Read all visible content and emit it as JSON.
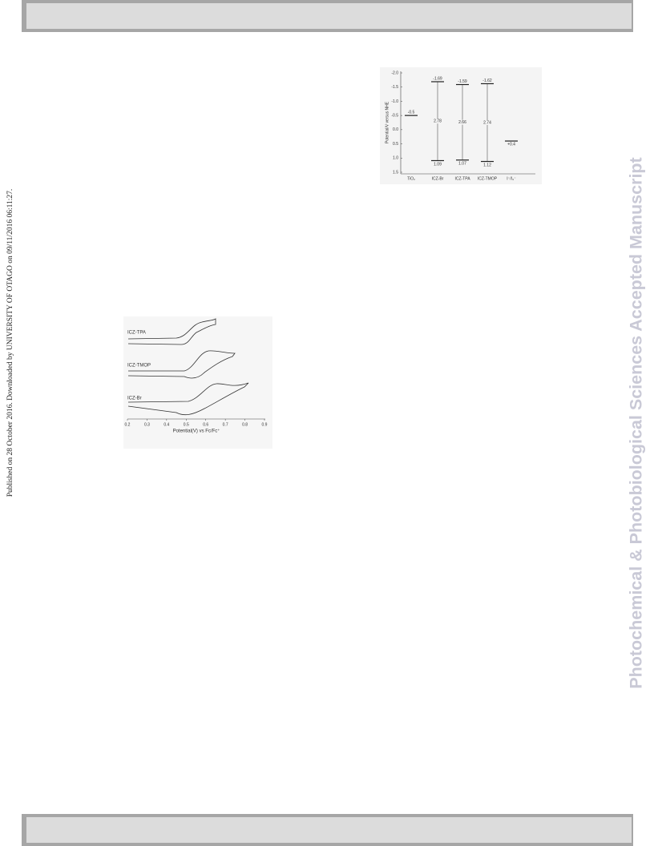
{
  "side_note": "Published on 28 October 2016. Downloaded by UNIVERSITY OF OTAGO on 09/11/2016 06:11:27.",
  "watermark": "Photochemical & Photobiological Sciences Accepted Manuscript",
  "figure_energy": {
    "y_axis_label": "Potential/V versus NHE",
    "yticks": [
      "-2.0",
      "-1.5",
      "-1.0",
      "-0.5",
      "0.0",
      "0.5",
      "1.0",
      "1.5"
    ],
    "columns": [
      {
        "name": "TiO₂",
        "level": "-0.5"
      },
      {
        "name": "ICZ-Br",
        "lumo": "-1.69",
        "gap": "2.78",
        "homo": "1.09"
      },
      {
        "name": "ICZ-TPA",
        "lumo": "-1.59",
        "gap": "2.66",
        "homo": "1.07"
      },
      {
        "name": "ICZ-TMOP",
        "lumo": "-1.62",
        "gap": "2.74",
        "homo": "1.12"
      },
      {
        "name": "I⁻/I₃⁻",
        "level": "+0.4"
      }
    ]
  },
  "figure_cv": {
    "curve_labels": [
      "ICZ-TPA",
      "ICZ-TMOP",
      "ICZ-Br"
    ],
    "xticks": [
      "0.2",
      "0.3",
      "0.4",
      "0.5",
      "0.6",
      "0.7",
      "0.8",
      "0.9"
    ],
    "x_axis_label": "Potential(V) vs Fc/Fc⁺"
  }
}
